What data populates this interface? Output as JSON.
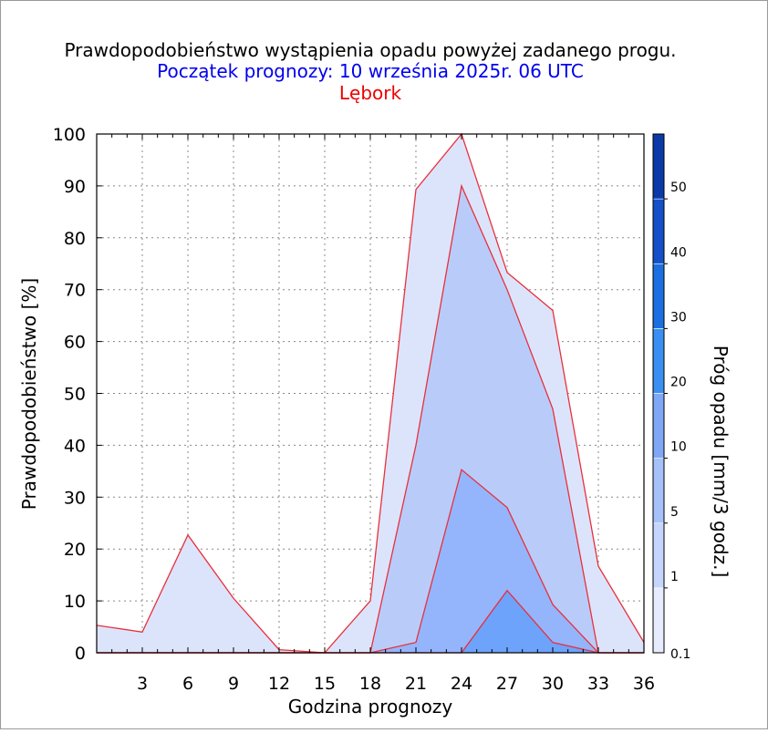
{
  "chart_data": {
    "type": "area",
    "title": "Prawdopodobieństwo wystąpienia opadu powyżej zadanego progu.",
    "subtitle": "Początek prognozy: 10 września 2025r. 06 UTC",
    "location": "Lębork",
    "xlabel": "Godzina prognozy",
    "ylabel": "Prawdopodobieństwo [%]",
    "colorbar_label": "Próg opadu [mm/3 godz.]",
    "xlim": [
      0,
      36
    ],
    "ylim": [
      0,
      100
    ],
    "x_ticks": [
      "3",
      "6",
      "9",
      "12",
      "15",
      "18",
      "21",
      "24",
      "27",
      "30",
      "33",
      "36"
    ],
    "y_ticks": [
      "0",
      "10",
      "20",
      "30",
      "40",
      "50",
      "60",
      "70",
      "80",
      "90",
      "100"
    ],
    "x": [
      0,
      3,
      6,
      9,
      12,
      15,
      18,
      21,
      24,
      27,
      30,
      33,
      36
    ],
    "series": [
      {
        "threshold": "0.1",
        "color": "#dce4fb",
        "values": [
          5.3,
          4,
          22.7,
          10.5,
          0.6,
          0,
          10,
          89.3,
          100,
          73.3,
          66,
          16.7,
          2
        ]
      },
      {
        "threshold": "1",
        "color": "#b9ccf9",
        "values": [
          0,
          0,
          0,
          0,
          0,
          0,
          0,
          40,
          90,
          70,
          47,
          0,
          0
        ]
      },
      {
        "threshold": "5",
        "color": "#94b5fb",
        "values": [
          0,
          0,
          0,
          0,
          0,
          0,
          0,
          2,
          35.3,
          28,
          9.3,
          0,
          0
        ]
      },
      {
        "threshold": "10",
        "color": "#6da3fb",
        "values": [
          0,
          0,
          0,
          0,
          0,
          0,
          0,
          0,
          0,
          12,
          2,
          0,
          0
        ]
      }
    ],
    "colorbar": {
      "labels": [
        "0.1",
        "1",
        "5",
        "10",
        "20",
        "30",
        "40",
        "50"
      ],
      "colors": [
        "#e6ecfd",
        "#c5d5fb",
        "#a6c0fa",
        "#7ea8f6",
        "#3b8ff2",
        "#1b6fe0",
        "#1451c8",
        "#0b3aa8"
      ]
    },
    "colors": {
      "outline": "#e8303c",
      "title": "#000000",
      "subtitle": "#0000ee",
      "location": "#ee0000"
    }
  }
}
